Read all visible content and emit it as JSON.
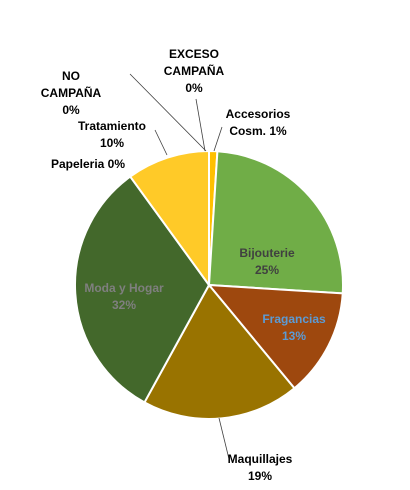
{
  "chart_data": {
    "type": "pie",
    "title": "",
    "slices": [
      {
        "id": "exceso-campana",
        "label_lines": [
          "EXCESO",
          "CAMPAÑA",
          "0%"
        ],
        "value": 0,
        "color": "#4472c4",
        "label_color": "#000000"
      },
      {
        "id": "accesorios-cosm",
        "label_lines": [
          "Accesorios",
          "Cosm. 1%"
        ],
        "value": 1,
        "color": "#ffc000",
        "label_color": "#000000"
      },
      {
        "id": "bijouterie",
        "label_lines": [
          "Bijouterie",
          "25%"
        ],
        "value": 25,
        "color": "#70ad47",
        "label_color": "#404040"
      },
      {
        "id": "fragancias",
        "label_lines": [
          "Fragancias",
          "13%"
        ],
        "value": 13,
        "color": "#9e480e",
        "label_color": "#5b9bd5"
      },
      {
        "id": "maquillajes",
        "label_lines": [
          "Maquillajes",
          "19%"
        ],
        "value": 19,
        "color": "#997300",
        "label_color": "#000000"
      },
      {
        "id": "moda-y-hogar",
        "label_lines": [
          "Moda y Hogar",
          "32%"
        ],
        "value": 32,
        "color": "#43682b",
        "label_color": "#7f7f7f"
      },
      {
        "id": "papeleria",
        "label_lines": [
          "Papeleria 0%"
        ],
        "value": 0,
        "color": "#ed7d31",
        "label_color": "#000000"
      },
      {
        "id": "tratamiento",
        "label_lines": [
          "Tratamiento",
          "10%"
        ],
        "value": 10,
        "color": "#ffca28",
        "label_color": "#000000"
      },
      {
        "id": "no-campana",
        "label_lines": [
          "NO",
          "CAMPAÑA",
          "0%"
        ],
        "value": 0,
        "color": "#a5a5a5",
        "label_color": "#000000"
      }
    ]
  }
}
